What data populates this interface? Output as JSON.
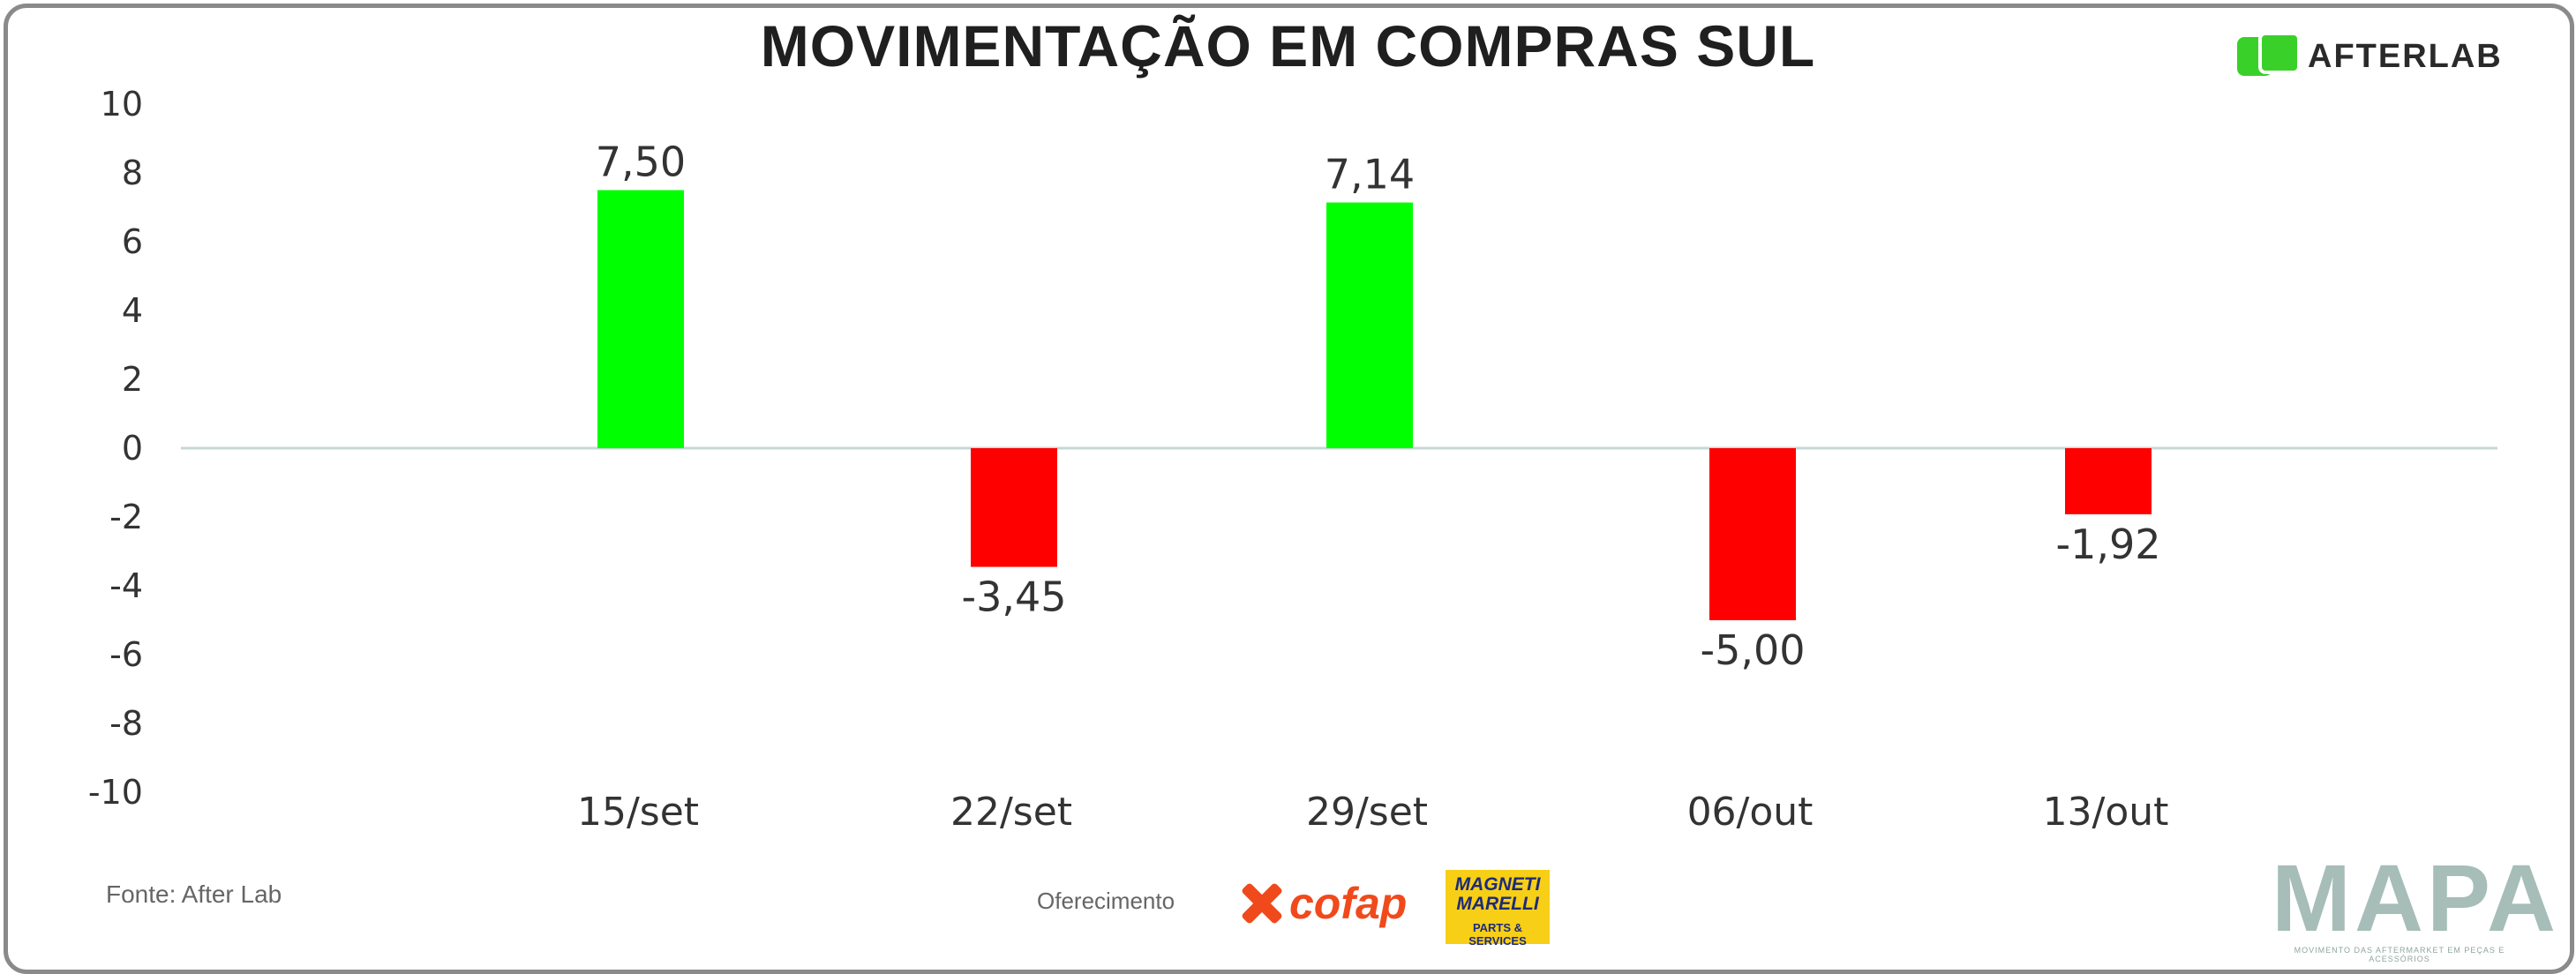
{
  "header": {
    "title": "MOVIMENTAÇÃO EM COMPRAS SUL"
  },
  "brand": {
    "afterlab": "AFTERLAB",
    "afterlab_icon": "afterlab-mark-icon",
    "afterlab_color": "#39d129"
  },
  "footer": {
    "source": "Fonte: After Lab",
    "sponsor_text": "Oferecimento",
    "cofap": "cofap",
    "cofap_color": "#f04a1c",
    "magneti_name": "MAGNETI\nMARELLI",
    "magneti_sub": "PARTS & SERVICES",
    "mapa": "MAPA",
    "mapa_tagline": "MOVIMENTO DAS AFTERMARKET EM PEÇAS E ACESSÓRIOS"
  },
  "chart_data": {
    "type": "bar",
    "title": "MOVIMENTAÇÃO EM COMPRAS SUL",
    "categories": [
      "15/set",
      "22/set",
      "29/set",
      "06/out",
      "13/out"
    ],
    "values": [
      7.5,
      -3.45,
      7.14,
      -5.0,
      -1.92
    ],
    "data_labels": [
      "7,50",
      "-3,45",
      "7,14",
      "-5,00",
      "-1,92"
    ],
    "y_ticks": [
      10,
      8,
      6,
      4,
      2,
      0,
      -2,
      -4,
      -6,
      -8,
      -10
    ],
    "ylim": [
      -10,
      10
    ],
    "xlabel": "",
    "ylabel": "",
    "grid": false,
    "positive_color": "#00ff00",
    "negative_color": "#ff0000",
    "zero_line_color": "#c5d8d6"
  }
}
